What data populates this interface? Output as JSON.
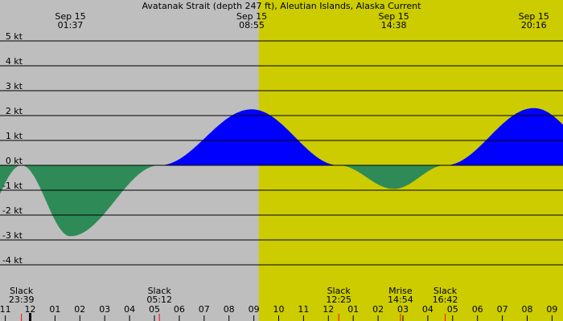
{
  "chart_data": {
    "type": "area",
    "title": "Avatanak Strait (depth 247 ft), Aleutian Islands, Alaska Current",
    "unit": "kt",
    "y_ticks": [
      5,
      4,
      3,
      2,
      1,
      0,
      -1,
      -2,
      -3,
      -4
    ],
    "y_tick_labels": [
      "5 kt",
      "4 kt",
      "3 kt",
      "2 kt",
      "1 kt",
      "0 kt",
      "-1 kt",
      "-2 kt",
      "-3 kt",
      "-4 kt"
    ],
    "ylim": [
      -4.8,
      5.4
    ],
    "x_range_hours": [
      -1.25,
      11.5
    ],
    "hour_ticks": [
      -1,
      0,
      1,
      2,
      3,
      4,
      5,
      6,
      7,
      8,
      9,
      10,
      11
    ],
    "hour_tick_labels": [
      "11",
      "12",
      "01",
      "02",
      "03",
      "04",
      "05",
      "06",
      "07",
      "08",
      "09",
      "10",
      "11",
      "12",
      "01",
      "02",
      "03",
      "04",
      "05",
      "06",
      "07",
      "08",
      "09"
    ],
    "hour_tick_values": [
      -1,
      0,
      1,
      2,
      3,
      4,
      5,
      6,
      7,
      8,
      9,
      10,
      11,
      12,
      13,
      14,
      15,
      16,
      17,
      18,
      19,
      20,
      21
    ],
    "daylight_start_hour": 9.2,
    "top_events": [
      {
        "date": "Sep 15",
        "time": "01:37",
        "hour": 1.617
      },
      {
        "date": "Sep 15",
        "time": "08:55",
        "hour": 8.917
      },
      {
        "date": "Sep 15",
        "time": "14:38",
        "hour": 14.633
      },
      {
        "date": "Sep 15",
        "time": "20:16",
        "hour": 20.267
      }
    ],
    "bottom_events": [
      {
        "label": "Slack",
        "time": "23:39",
        "hour": -0.35
      },
      {
        "label": "Slack",
        "time": "05:12",
        "hour": 5.2
      },
      {
        "label": "Slack",
        "time": "12:25",
        "hour": 12.417
      },
      {
        "label": "Mrise",
        "time": "14:54",
        "hour": 14.9
      },
      {
        "label": "Slack",
        "time": "16:42",
        "hour": 16.7
      }
    ],
    "current_points": [
      {
        "hour": -0.35,
        "kt": 0
      },
      {
        "hour": 1.617,
        "kt": -2.85
      },
      {
        "hour": 5.2,
        "kt": 0
      },
      {
        "hour": 8.917,
        "kt": 2.25
      },
      {
        "hour": 12.417,
        "kt": 0
      },
      {
        "hour": 14.633,
        "kt": -0.95
      },
      {
        "hour": 16.7,
        "kt": 0
      },
      {
        "hour": 20.267,
        "kt": 2.3
      },
      {
        "hour": 23.5,
        "kt": 0
      }
    ],
    "colors": {
      "flood": "#0000ff",
      "ebb": "#2e8b57",
      "night_bg": "#bebebe",
      "day_bg": "#cccc00",
      "gridline": "#000000",
      "event_mark": "#ff0000",
      "midnight_mark": "#000000"
    }
  }
}
